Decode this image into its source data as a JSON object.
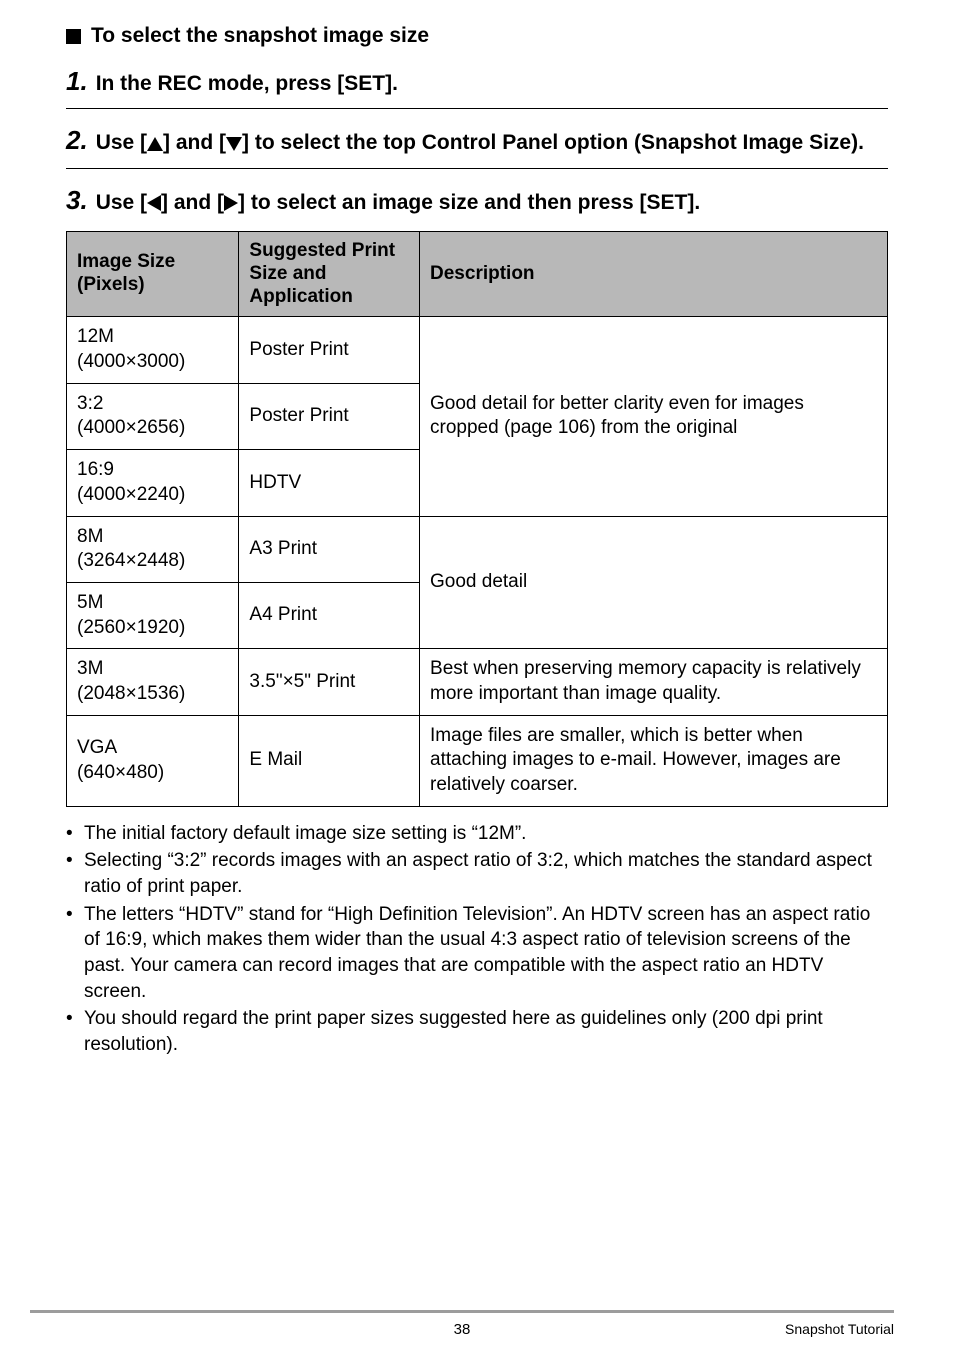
{
  "section_title": "To select the snapshot image size",
  "steps": [
    {
      "num": "1.",
      "text_parts": [
        "In the REC mode, press [SET]."
      ]
    },
    {
      "num": "2.",
      "text_parts": [
        "Use [",
        "TRI_UP",
        "] and [",
        "TRI_DOWN",
        "] to select the top Control Panel option (Snapshot Image Size)."
      ]
    },
    {
      "num": "3.",
      "text_parts": [
        "Use [",
        "TRI_LEFT",
        "] and [",
        "TRI_RIGHT",
        "] to select an image size and then press [SET]."
      ]
    }
  ],
  "triangles": {
    "up": "<svg class=\"tri\" width=\"16\" height=\"14\"><polygon points=\"8,0 16,14 0,14\" fill=\"#000\"/></svg>",
    "down": "<svg class=\"tri\" width=\"16\" height=\"14\"><polygon points=\"0,0 16,0 8,14\" fill=\"#000\"/></svg>",
    "left": "<svg class=\"tri\" width=\"14\" height=\"16\"><polygon points=\"14,0 14,16 0,8\" fill=\"#000\"/></svg>",
    "right": "<svg class=\"tri\" width=\"14\" height=\"16\"><polygon points=\"0,0 14,8 0,16\" fill=\"#000\"/></svg>"
  },
  "table": {
    "headers": [
      "Image Size (Pixels)",
      "Suggested Print Size and Application",
      "Description"
    ],
    "col_widths": [
      "21%",
      "22%",
      "57%"
    ],
    "rows": [
      {
        "c0": "12M<br>(4000×3000)",
        "c1": "Poster Print",
        "c2": "Good detail for better clarity even for images cropped (page 106) from the original",
        "c2_rowspan": 3
      },
      {
        "c0": "3:2<br>(4000×2656)",
        "c1": "Poster Print"
      },
      {
        "c0": "16:9<br>(4000×2240)",
        "c1": "HDTV"
      },
      {
        "c0": "8M<br>(3264×2448)",
        "c1": "A3 Print",
        "c2": "Good detail",
        "c2_rowspan": 2
      },
      {
        "c0": "5M<br>(2560×1920)",
        "c1": "A4 Print"
      },
      {
        "c0": "3M<br>(2048×1536)",
        "c1": "3.5\"×5\" Print",
        "c2": "Best when preserving memory capacity is relatively more important than image quality."
      },
      {
        "c0": "VGA<br>(640×480)",
        "c1": "E Mail",
        "c2": "Image files are smaller, which is better when attaching images to e-mail. However, images are relatively coarser."
      }
    ]
  },
  "notes": [
    "The initial factory default image size setting is “12M”.",
    "Selecting “3:2” records images with an aspect ratio of 3:2, which matches the standard aspect ratio of print paper.",
    "The letters “HDTV” stand for “High Definition Television”. An HDTV screen has an aspect ratio of 16:9, which makes them wider than the usual 4:3 aspect ratio of television screens of the past. Your camera can record images that are compatible with the aspect ratio an HDTV screen.",
    "You should regard the print paper sizes suggested here as guidelines only (200 dpi print resolution)."
  ],
  "footer": {
    "page": "38",
    "label": "Snapshot Tutorial"
  }
}
